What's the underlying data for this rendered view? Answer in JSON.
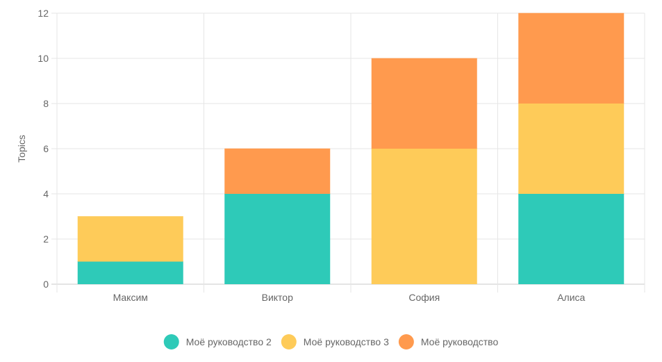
{
  "chart_data": {
    "type": "bar",
    "stacked": true,
    "title": "",
    "xlabel": "",
    "ylabel": "Topics",
    "ylim": [
      0,
      12
    ],
    "y_ticks": [
      0,
      2,
      4,
      6,
      8,
      10,
      12
    ],
    "grid": true,
    "legend_position": "bottom",
    "categories": [
      "Максим",
      "Виктор",
      "София",
      "Алиса"
    ],
    "series": [
      {
        "name": "Моё руководство 2",
        "color": "#2ecab8",
        "values": [
          1,
          4,
          0,
          4
        ]
      },
      {
        "name": "Моё руководство 3",
        "color": "#fecb59",
        "values": [
          2,
          0,
          6,
          4
        ]
      },
      {
        "name": "Моё руководство",
        "color": "#ff9a4e",
        "values": [
          0,
          2,
          4,
          4
        ]
      }
    ]
  }
}
